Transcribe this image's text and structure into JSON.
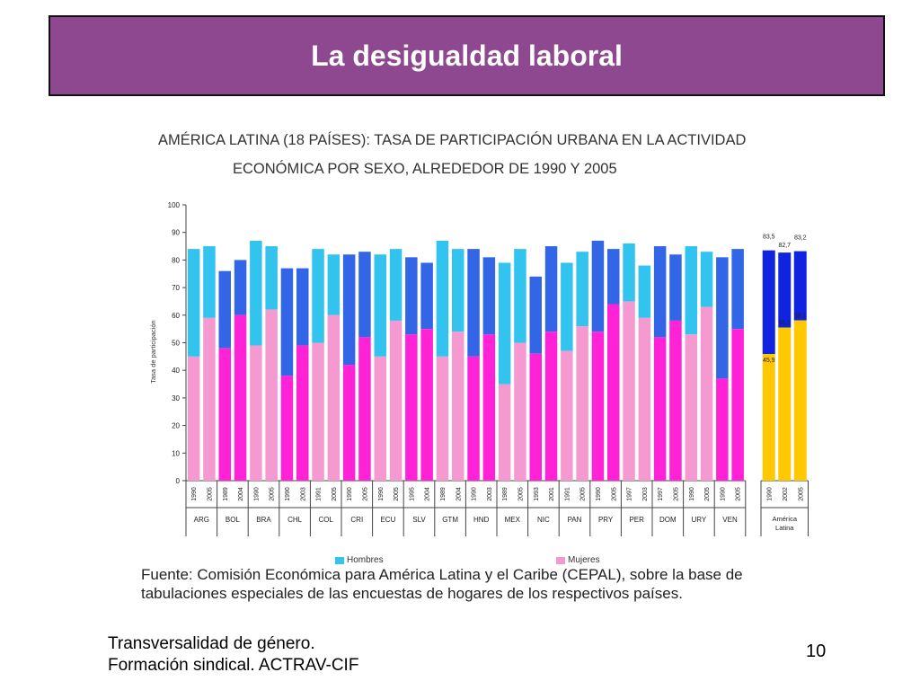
{
  "slide": {
    "title": "La desigualdad laboral",
    "footer_line1": "Transversalidad de género.",
    "footer_line2": "Formación sindical. ACTRAV-CIF",
    "page_number": "10"
  },
  "chart_data": {
    "type": "bar",
    "title_line1": "AMÉRICA LATINA (18 PAÍSES): TASA DE PARTICIPACIÓN URBANA EN LA ACTIVIDAD",
    "title_line2": "ECONÓMICA POR SEXO, ALREDEDOR DE 1990 Y 2005",
    "ylabel": "Tasa de participación",
    "ylim": [
      0,
      100
    ],
    "yticks": [
      0,
      10,
      20,
      30,
      40,
      50,
      60,
      70,
      80,
      90,
      100
    ],
    "grid": false,
    "colors": {
      "hombres_light": "#33c3ef",
      "hombres_dark": "#3366e6",
      "mujeres_light": "#f59ad0",
      "mujeres_dark": "#ff22d6",
      "al_hombres": "#1024e0",
      "al_mujeres": "#ffc800"
    },
    "legend": [
      {
        "label": "Hombres",
        "color": "#33c3ef"
      },
      {
        "label": "Mujeres",
        "color": "#f59ad0"
      }
    ],
    "countries": [
      {
        "code": "ARG",
        "style": "light",
        "bars": [
          {
            "year": "1990",
            "hombres": 84,
            "mujeres": 45
          },
          {
            "year": "2005",
            "hombres": 85,
            "mujeres": 59
          }
        ]
      },
      {
        "code": "BOL",
        "style": "dark",
        "bars": [
          {
            "year": "1989",
            "hombres": 76,
            "mujeres": 48
          },
          {
            "year": "2004",
            "hombres": 80,
            "mujeres": 60
          }
        ]
      },
      {
        "code": "BRA",
        "style": "light",
        "bars": [
          {
            "year": "1990",
            "hombres": 87,
            "mujeres": 49
          },
          {
            "year": "2005",
            "hombres": 85,
            "mujeres": 62
          }
        ]
      },
      {
        "code": "CHL",
        "style": "dark",
        "bars": [
          {
            "year": "1990",
            "hombres": 77,
            "mujeres": 38
          },
          {
            "year": "2003",
            "hombres": 77,
            "mujeres": 49
          }
        ]
      },
      {
        "code": "COL",
        "style": "light",
        "bars": [
          {
            "year": "1991",
            "hombres": 84,
            "mujeres": 50
          },
          {
            "year": "2005",
            "hombres": 82,
            "mujeres": 60
          }
        ]
      },
      {
        "code": "CRI",
        "style": "dark",
        "bars": [
          {
            "year": "1990",
            "hombres": 82,
            "mujeres": 42
          },
          {
            "year": "2005",
            "hombres": 83,
            "mujeres": 52
          }
        ]
      },
      {
        "code": "ECU",
        "style": "light",
        "bars": [
          {
            "year": "1990",
            "hombres": 82,
            "mujeres": 45
          },
          {
            "year": "2005",
            "hombres": 84,
            "mujeres": 58
          }
        ]
      },
      {
        "code": "SLV",
        "style": "dark",
        "bars": [
          {
            "year": "1995",
            "hombres": 81,
            "mujeres": 53
          },
          {
            "year": "2004",
            "hombres": 79,
            "mujeres": 55
          }
        ]
      },
      {
        "code": "GTM",
        "style": "light",
        "bars": [
          {
            "year": "1989",
            "hombres": 87,
            "mujeres": 45
          },
          {
            "year": "2004",
            "hombres": 84,
            "mujeres": 54
          }
        ]
      },
      {
        "code": "HND",
        "style": "dark",
        "bars": [
          {
            "year": "1990",
            "hombres": 84,
            "mujeres": 45
          },
          {
            "year": "2003",
            "hombres": 81,
            "mujeres": 53
          }
        ]
      },
      {
        "code": "MEX",
        "style": "light",
        "bars": [
          {
            "year": "1989",
            "hombres": 79,
            "mujeres": 35
          },
          {
            "year": "2005",
            "hombres": 84,
            "mujeres": 50
          }
        ]
      },
      {
        "code": "NIC",
        "style": "dark",
        "bars": [
          {
            "year": "1993",
            "hombres": 74,
            "mujeres": 46
          },
          {
            "year": "2001",
            "hombres": 85,
            "mujeres": 54
          }
        ]
      },
      {
        "code": "PAN",
        "style": "light",
        "bars": [
          {
            "year": "1991",
            "hombres": 79,
            "mujeres": 47
          },
          {
            "year": "2005",
            "hombres": 83,
            "mujeres": 56
          }
        ]
      },
      {
        "code": "PRY",
        "style": "dark",
        "bars": [
          {
            "year": "1990",
            "hombres": 87,
            "mujeres": 54
          },
          {
            "year": "2005",
            "hombres": 84,
            "mujeres": 64
          }
        ]
      },
      {
        "code": "PER",
        "style": "light",
        "bars": [
          {
            "year": "1997",
            "hombres": 86,
            "mujeres": 65
          },
          {
            "year": "2003",
            "hombres": 78,
            "mujeres": 59
          }
        ]
      },
      {
        "code": "DOM",
        "style": "dark",
        "bars": [
          {
            "year": "1997",
            "hombres": 85,
            "mujeres": 52
          },
          {
            "year": "2005",
            "hombres": 82,
            "mujeres": 58
          }
        ]
      },
      {
        "code": "URY",
        "style": "light",
        "bars": [
          {
            "year": "1990",
            "hombres": 85,
            "mujeres": 53
          },
          {
            "year": "2005",
            "hombres": 83,
            "mujeres": 63
          }
        ]
      },
      {
        "code": "VEN",
        "style": "dark",
        "bars": [
          {
            "year": "1990",
            "hombres": 81,
            "mujeres": 37
          },
          {
            "year": "2005",
            "hombres": 84,
            "mujeres": 55
          }
        ]
      }
    ],
    "aggregate": {
      "label_line1": "América",
      "label_line2": "Latina",
      "bars": [
        {
          "year": "1990",
          "hombres": 83.5,
          "mujeres": 45.9,
          "hombres_label": "83,5",
          "mujeres_label": "45,9"
        },
        {
          "year": "2002",
          "hombres": 82.7,
          "mujeres": 55.5,
          "hombres_label": "82,7",
          "mujeres_label": "55,5"
        },
        {
          "year": "2005",
          "hombres": 83.2,
          "mujeres": 58.1,
          "hombres_label": "83,2",
          "mujeres_label": "58,1"
        }
      ]
    },
    "source_text": "Fuente: Comisión Económica para América Latina y el Caribe (CEPAL), sobre la base de tabulaciones especiales de las encuestas de hogares de los respectivos países."
  }
}
